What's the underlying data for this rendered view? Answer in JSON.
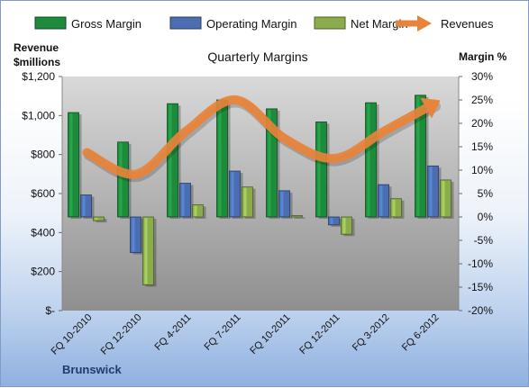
{
  "chart_data": {
    "type": "bar",
    "title": "Quarterly Margins",
    "company": "Brunswick",
    "ylabel_left_line1": "Revenue",
    "ylabel_left_line2": "$millions",
    "ylabel_right": "Margin %",
    "categories": [
      "FQ 10-2010",
      "FQ 12-2010",
      "FQ 4-2011",
      "FQ 7-2011",
      "FQ 10-2011",
      "FQ 12-2011",
      "FQ 3-2012",
      "FQ 6-2012"
    ],
    "left_axis": {
      "min": 0,
      "max": 1200,
      "ticks": [
        0,
        200,
        400,
        600,
        800,
        1000,
        1200
      ],
      "tick_labels": [
        "$-",
        "$200",
        "$400",
        "$600",
        "$800",
        "$1,000",
        "$1,200"
      ]
    },
    "right_axis": {
      "min": -20,
      "max": 30,
      "ticks": [
        -20,
        -15,
        -10,
        -5,
        0,
        5,
        10,
        15,
        20,
        25,
        30
      ],
      "tick_labels": [
        "-20%",
        "-15%",
        "-10%",
        "-5%",
        "0%",
        "5%",
        "10%",
        "15%",
        "20%",
        "25%",
        "30%"
      ]
    },
    "series": [
      {
        "name": "Gross Margin",
        "axis": "right",
        "kind": "bar",
        "color": "#1e8a3c",
        "values": [
          22.3,
          16.0,
          24.2,
          25.0,
          23.1,
          20.3,
          24.4,
          26.0
        ]
      },
      {
        "name": "Operating Margin",
        "axis": "right",
        "kind": "bar",
        "color": "#4a6eb0",
        "values": [
          4.7,
          -7.6,
          7.2,
          9.8,
          5.6,
          -1.7,
          6.9,
          10.9
        ]
      },
      {
        "name": "Net Margin",
        "axis": "right",
        "kind": "bar",
        "color": "#8bac4c",
        "values": [
          -0.8,
          -14.5,
          2.6,
          6.4,
          0.3,
          -3.7,
          3.9,
          7.9
        ]
      },
      {
        "name": "Revenues",
        "axis": "left",
        "kind": "line",
        "color": "#e8833a",
        "values": [
          810,
          700,
          920,
          1080,
          880,
          780,
          920,
          1060
        ]
      }
    ],
    "grid": false,
    "legend_position": "top"
  }
}
